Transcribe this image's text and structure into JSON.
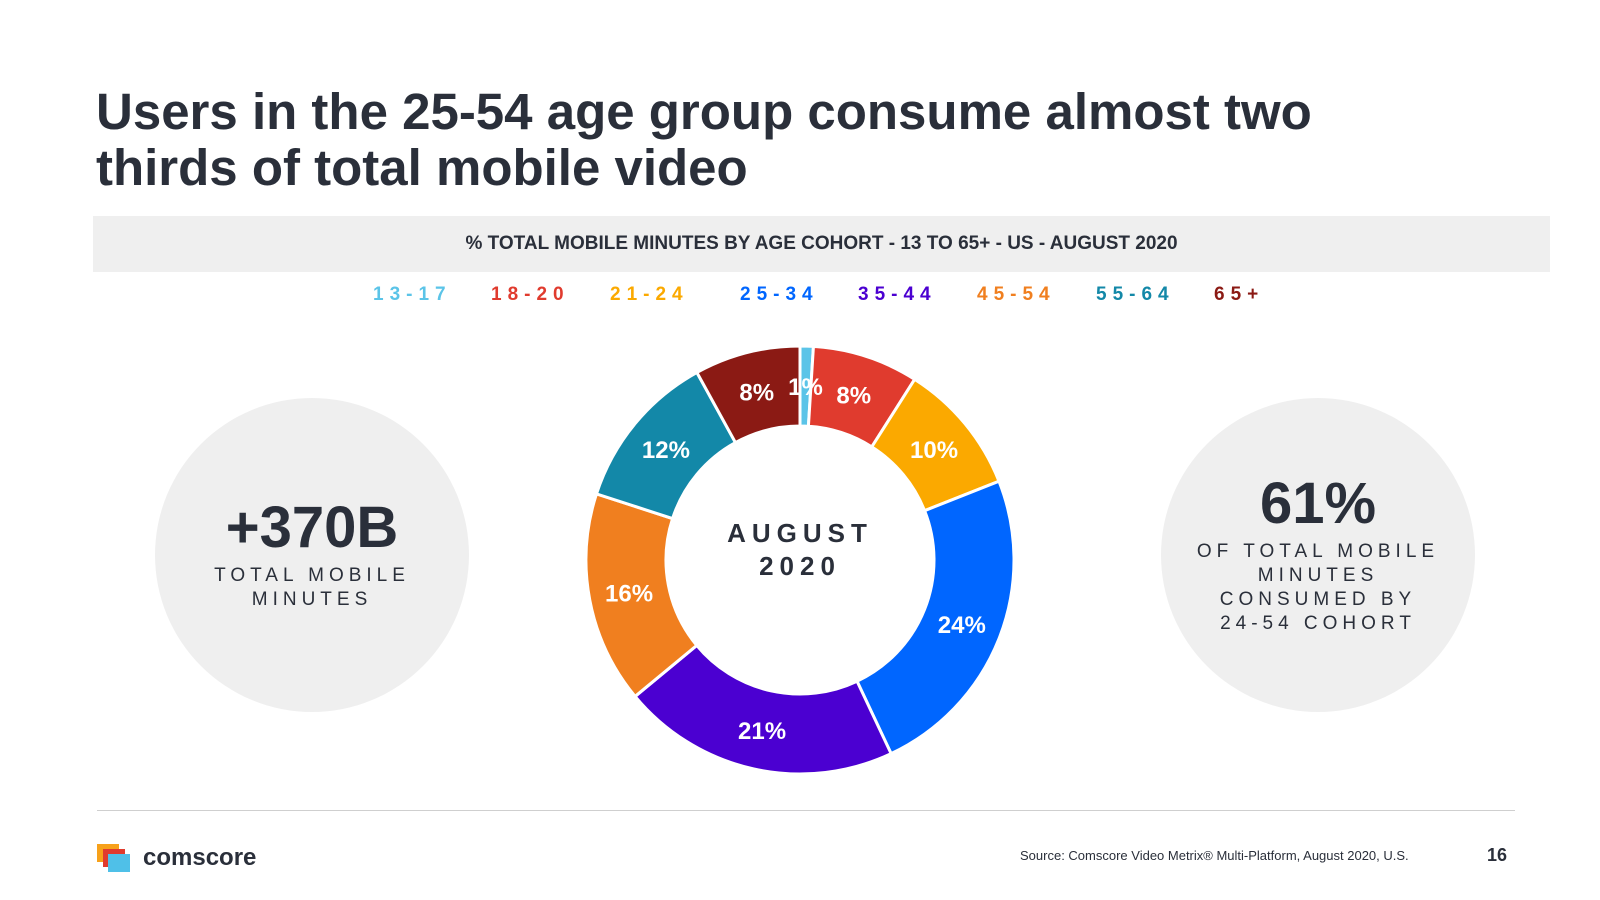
{
  "slide": {
    "title_line1": "Users in the 25-54 age group consume almost two",
    "title_line2": "thirds of total mobile video",
    "subtitle": "% TOTAL MOBILE MINUTES BY AGE COHORT - 13 TO 65+ - US - AUGUST 2020",
    "page_number": "16"
  },
  "stats": {
    "left": {
      "value": "+370B",
      "caption_line1": "TOTAL MOBILE",
      "caption_line2": "MINUTES"
    },
    "right": {
      "value": "61%",
      "caption_line1": "OF TOTAL MOBILE",
      "caption_line2": "MINUTES",
      "caption_line3": "CONSUMED BY",
      "caption_line4": "24-54 COHORT"
    }
  },
  "chart_data": {
    "type": "pie",
    "variant": "donut",
    "title": "% TOTAL MOBILE MINUTES BY AGE COHORT - 13 TO 65+ - US - AUGUST 2020",
    "center_label_line1": "AUGUST",
    "center_label_line2": "2020",
    "legend_position": "top",
    "slices": [
      {
        "name": "13-17",
        "value": 1,
        "label": "1%",
        "color": "#5bc4e8"
      },
      {
        "name": "18-20",
        "value": 8,
        "label": "8%",
        "color": "#e03b2e"
      },
      {
        "name": "21-24",
        "value": 10,
        "label": "10%",
        "color": "#fba900"
      },
      {
        "name": "25-34",
        "value": 24,
        "label": "24%",
        "color": "#0066ff"
      },
      {
        "name": "35-44",
        "value": 21,
        "label": "21%",
        "color": "#4b00d1"
      },
      {
        "name": "45-54",
        "value": 16,
        "label": "16%",
        "color": "#f07f1f"
      },
      {
        "name": "55-64",
        "value": 12,
        "label": "12%",
        "color": "#1388a8"
      },
      {
        "name": "65+",
        "value": 8,
        "label": "8%",
        "color": "#8b1a14"
      }
    ]
  },
  "footer": {
    "brand": "comscore",
    "source": "Source: Comscore Video Metrix® Multi-Platform, August 2020, U.S."
  }
}
